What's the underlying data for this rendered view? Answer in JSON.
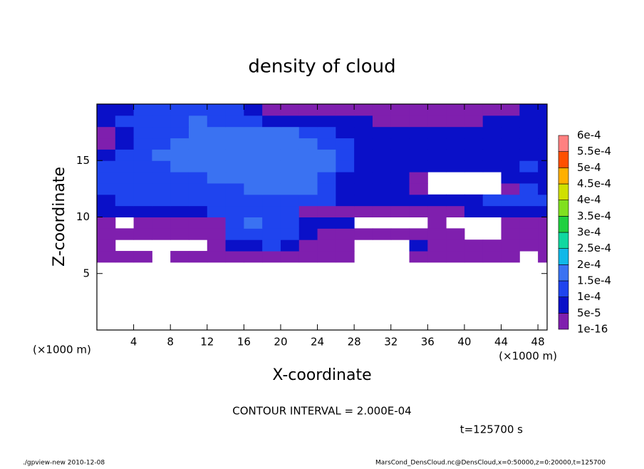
{
  "chart_data": {
    "type": "contour",
    "title": "density of cloud",
    "x_label": "X-coordinate",
    "y_label": "Z-coordinate",
    "x_unit": "(×1000 m)",
    "contour_interval": "CONTOUR INTERVAL = 2.000E-04",
    "time": "t=125700 s",
    "footer_left": "./gpview-new  2010-12-08",
    "footer_right": "MarsCond_DensCloud.nc@DensCloud,x=0:50000,z=0:20000,t=125700",
    "xlim": [
      0,
      49
    ],
    "ylim": [
      0,
      20
    ],
    "xticks": [
      4,
      8,
      12,
      16,
      20,
      24,
      28,
      32,
      36,
      40,
      44,
      48
    ],
    "yticks": [
      5,
      10,
      15
    ],
    "x": [
      1,
      3,
      5,
      7,
      9,
      11,
      13,
      15,
      17,
      19,
      21,
      23,
      25,
      27,
      29,
      31,
      33,
      35,
      37,
      39,
      41,
      43,
      45,
      47,
      49
    ],
    "z": [
      6.5,
      7.5,
      8.5,
      9.5,
      10.5,
      11.5,
      12.5,
      13.5,
      14.5,
      15.5,
      16.5,
      17.5,
      18.5,
      19.5
    ],
    "values": [
      [
        3e-05,
        3e-05,
        3e-05,
        null,
        3e-05,
        3e-05,
        3e-05,
        3e-05,
        3e-05,
        3e-05,
        3e-05,
        3e-05,
        3e-05,
        3e-05,
        null,
        null,
        null,
        3e-05,
        3e-05,
        3e-05,
        3e-05,
        3e-05,
        3e-05,
        null,
        3e-05
      ],
      [
        3e-05,
        null,
        null,
        null,
        null,
        null,
        3e-05,
        7e-05,
        7e-05,
        0.00012,
        7e-05,
        3e-05,
        3e-05,
        3e-05,
        null,
        null,
        null,
        7e-05,
        3e-05,
        3e-05,
        3e-05,
        3e-05,
        3e-05,
        3e-05,
        3e-05
      ],
      [
        3e-05,
        3e-05,
        3e-05,
        3e-05,
        3e-05,
        3e-05,
        3e-05,
        0.00012,
        0.00012,
        0.00012,
        0.00012,
        7e-05,
        3e-05,
        3e-05,
        3e-05,
        3e-05,
        3e-05,
        3e-05,
        3e-05,
        3e-05,
        null,
        null,
        3e-05,
        3e-05,
        3e-05
      ],
      [
        3e-05,
        null,
        3e-05,
        3e-05,
        3e-05,
        3e-05,
        3e-05,
        0.00012,
        0.00017,
        0.00012,
        0.00012,
        7e-05,
        7e-05,
        7e-05,
        null,
        null,
        null,
        null,
        3e-05,
        null,
        null,
        null,
        3e-05,
        3e-05,
        3e-05
      ],
      [
        7e-05,
        7e-05,
        7e-05,
        7e-05,
        7e-05,
        7e-05,
        0.00012,
        0.00012,
        0.00012,
        0.00012,
        0.00012,
        3e-05,
        3e-05,
        3e-05,
        3e-05,
        3e-05,
        3e-05,
        3e-05,
        3e-05,
        3e-05,
        7e-05,
        7e-05,
        7e-05,
        7e-05,
        7e-05
      ],
      [
        7e-05,
        0.00012,
        0.00012,
        0.00012,
        0.00012,
        0.00012,
        0.00012,
        0.00012,
        0.00012,
        0.00012,
        0.00012,
        0.00012,
        0.00012,
        7e-05,
        7e-05,
        7e-05,
        7e-05,
        7e-05,
        7e-05,
        7e-05,
        7e-05,
        0.00012,
        0.00012,
        0.00012,
        0.00012
      ],
      [
        0.00012,
        0.00012,
        0.00012,
        0.00012,
        0.00012,
        0.00012,
        0.00012,
        0.00012,
        0.00017,
        0.00017,
        0.00017,
        0.00017,
        0.00012,
        7e-05,
        7e-05,
        7e-05,
        7e-05,
        3e-05,
        null,
        null,
        null,
        null,
        3e-05,
        0.00012,
        7e-05
      ],
      [
        0.00012,
        0.00012,
        0.00012,
        0.00012,
        0.00012,
        0.00012,
        0.00017,
        0.00017,
        0.00017,
        0.00017,
        0.00017,
        0.00017,
        0.00012,
        7e-05,
        7e-05,
        7e-05,
        7e-05,
        3e-05,
        null,
        null,
        null,
        null,
        7e-05,
        7e-05,
        7e-05
      ],
      [
        0.00012,
        0.00012,
        0.00012,
        0.00012,
        0.00017,
        0.00017,
        0.00017,
        0.00017,
        0.00017,
        0.00017,
        0.00017,
        0.00017,
        0.00017,
        0.00012,
        7e-05,
        7e-05,
        7e-05,
        7e-05,
        7e-05,
        7e-05,
        7e-05,
        7e-05,
        7e-05,
        0.00012,
        7e-05
      ],
      [
        7e-05,
        0.00012,
        0.00012,
        0.00017,
        0.00017,
        0.00017,
        0.00017,
        0.00017,
        0.00017,
        0.00017,
        0.00017,
        0.00017,
        0.00017,
        0.00012,
        7e-05,
        7e-05,
        7e-05,
        7e-05,
        7e-05,
        7e-05,
        7e-05,
        7e-05,
        7e-05,
        7e-05,
        7e-05
      ],
      [
        3e-05,
        7e-05,
        0.00012,
        0.00012,
        0.00017,
        0.00017,
        0.00017,
        0.00017,
        0.00017,
        0.00017,
        0.00017,
        0.00017,
        0.00012,
        0.00012,
        7e-05,
        7e-05,
        7e-05,
        7e-05,
        7e-05,
        7e-05,
        7e-05,
        7e-05,
        7e-05,
        7e-05,
        7e-05
      ],
      [
        3e-05,
        7e-05,
        0.00012,
        0.00012,
        0.00012,
        0.00017,
        0.00017,
        0.00017,
        0.00017,
        0.00017,
        0.00017,
        0.00012,
        0.00012,
        7e-05,
        7e-05,
        7e-05,
        7e-05,
        7e-05,
        7e-05,
        7e-05,
        7e-05,
        7e-05,
        7e-05,
        7e-05,
        7e-05
      ],
      [
        7e-05,
        0.00012,
        0.00012,
        0.00012,
        0.00012,
        0.00017,
        0.00012,
        0.00012,
        0.00012,
        7e-05,
        7e-05,
        7e-05,
        7e-05,
        7e-05,
        7e-05,
        3e-05,
        3e-05,
        3e-05,
        3e-05,
        3e-05,
        3e-05,
        7e-05,
        7e-05,
        7e-05,
        7e-05
      ],
      [
        7e-05,
        7e-05,
        0.00012,
        0.00012,
        0.00012,
        0.00012,
        0.00012,
        0.00012,
        7e-05,
        3e-05,
        3e-05,
        3e-05,
        3e-05,
        3e-05,
        3e-05,
        3e-05,
        3e-05,
        3e-05,
        3e-05,
        3e-05,
        3e-05,
        3e-05,
        3e-05,
        7e-05,
        7e-05
      ]
    ],
    "levels": [
      {
        "value": 1e-16,
        "label": "1e-16"
      },
      {
        "value": 5e-05,
        "label": "5e-5"
      },
      {
        "value": 0.0001,
        "label": "1e-4"
      },
      {
        "value": 0.00015,
        "label": "1.5e-4"
      },
      {
        "value": 0.0002,
        "label": "2e-4"
      },
      {
        "value": 0.00025,
        "label": "2.5e-4"
      },
      {
        "value": 0.0003,
        "label": "3e-4"
      },
      {
        "value": 0.00035,
        "label": "3.5e-4"
      },
      {
        "value": 0.0004,
        "label": "4e-4"
      },
      {
        "value": 0.00045,
        "label": "4.5e-4"
      },
      {
        "value": 0.0005,
        "label": "5e-4"
      },
      {
        "value": 0.00055,
        "label": "5.5e-4"
      },
      {
        "value": 0.0006,
        "label": "6e-4"
      }
    ],
    "colors": [
      "#7f1fae",
      "#0a10c8",
      "#1f44ee",
      "#3a72f2",
      "#10b8e8",
      "#10d8a0",
      "#20d040",
      "#80e020",
      "#d0e000",
      "#ffb000",
      "#ff5000",
      "#ff8080"
    ]
  }
}
